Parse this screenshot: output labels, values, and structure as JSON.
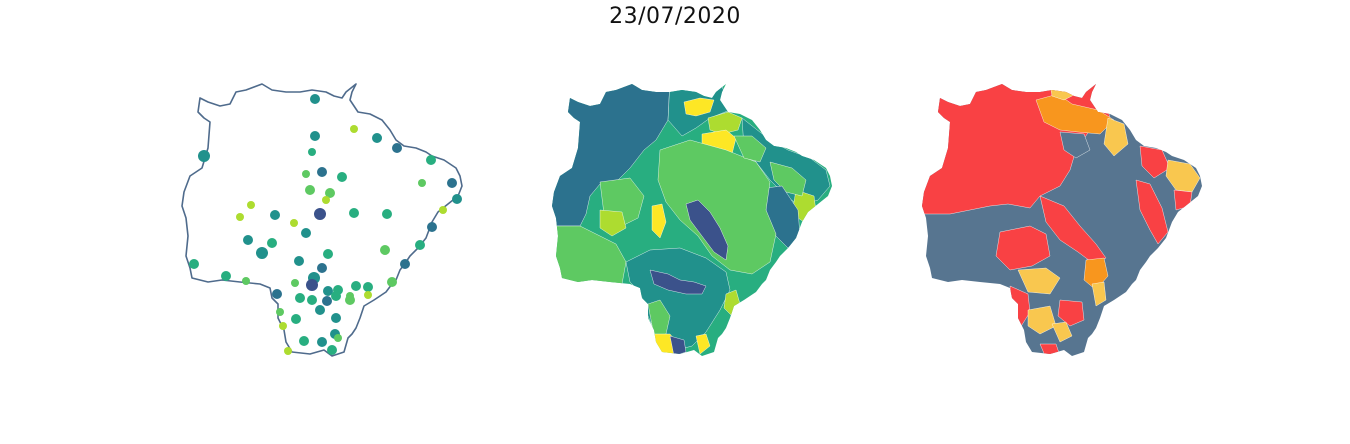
{
  "title": "23/07/2020",
  "colors": {
    "outline": "#4f6b8c",
    "viridis": [
      "#3b528b",
      "#2c728e",
      "#21918c",
      "#28ae80",
      "#5ec962",
      "#addc30",
      "#fde725"
    ],
    "risk": {
      "high": "#f94144",
      "medium_high": "#f8961e",
      "medium": "#f9c74f",
      "low": "#577590"
    }
  },
  "panels": [
    {
      "name": "municipality-points-map",
      "type": "proportional-points"
    },
    {
      "name": "municipality-choropleth-map",
      "type": "choropleth",
      "palette": "viridis"
    },
    {
      "name": "risk-category-map",
      "type": "categorical-choropleth",
      "categories": [
        "high",
        "medium_high",
        "medium",
        "low"
      ]
    }
  ]
}
